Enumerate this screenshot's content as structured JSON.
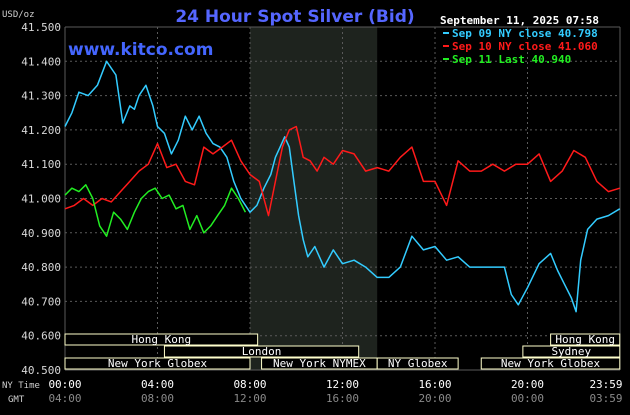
{
  "page_title": "24 Hour Spot Silver (Bid)",
  "units": "USD/oz",
  "brand": "www.kitco.com",
  "timestamp": "September 11, 2025 07:58",
  "axis_label_ny": "NY Time",
  "axis_label_gmt": "GMT",
  "colors": {
    "background": "#000000",
    "grid": "#5a5a5a",
    "series_sep09": "#33ccff",
    "series_sep10": "#ff1a1a",
    "series_sep11": "#22ee22",
    "title": "#5566ff",
    "ny_session_shade": "#1e231e",
    "session_box_fill": "#ffffcc"
  },
  "sessions": [
    {
      "label": "Hong Kong",
      "start": 0,
      "end": 8.33
    },
    {
      "label": "London",
      "start": 4.3,
      "end": 12.7
    },
    {
      "label": "New York Globex",
      "start": 0,
      "end": 8.0
    },
    {
      "label": "New York NYMEX",
      "start": 8.5,
      "end": 13.5
    },
    {
      "label": "NY Globex",
      "start": 13.5,
      "end": 17.0
    },
    {
      "label": "Sydney",
      "start": 19.8,
      "end": 23.99
    },
    {
      "label": "Hong Kong",
      "start": 21.0,
      "end": 23.99
    },
    {
      "label": "New York Globex",
      "start": 18.0,
      "end": 23.99
    }
  ],
  "chart_data": {
    "type": "line",
    "title": "24 Hour Spot Silver (Bid)",
    "ylabel": "USD/oz",
    "xlabel": "NY Time",
    "ylim": [
      40.5,
      41.5
    ],
    "xlim": [
      0,
      24
    ],
    "yticks": [
      "41.500",
      "41.400",
      "41.300",
      "41.200",
      "41.100",
      "41.000",
      "40.900",
      "40.800",
      "40.700",
      "40.600",
      "40.500"
    ],
    "xticks_ny": [
      "00:00",
      "04:00",
      "08:00",
      "12:00",
      "16:00",
      "20:00",
      "23:59"
    ],
    "xticks_gmt": [
      "04:00",
      "08:00",
      "12:00",
      "16:00",
      "20:00",
      "00:00",
      "03:59"
    ],
    "grid": true,
    "legend_position": "top-right",
    "series": [
      {
        "name": "Sep 09 NY close 40.798",
        "color": "#33ccff",
        "x": [
          0,
          0.3,
          0.6,
          1.0,
          1.4,
          1.8,
          2.2,
          2.5,
          2.8,
          3.0,
          3.2,
          3.5,
          3.8,
          4.0,
          4.3,
          4.6,
          4.9,
          5.2,
          5.5,
          5.8,
          6.1,
          6.4,
          6.7,
          7.0,
          7.3,
          7.6,
          8.0,
          8.3,
          8.6,
          8.9,
          9.1,
          9.3,
          9.5,
          9.7,
          9.9,
          10.1,
          10.3,
          10.5,
          10.8,
          11.2,
          11.6,
          12.0,
          12.5,
          13.0,
          13.5,
          14.0,
          14.5,
          15.0,
          15.5,
          16.0,
          16.5,
          17.0,
          17.5,
          18.0,
          18.5,
          19.0,
          19.3,
          19.6,
          20.0,
          20.5,
          21.0,
          21.3,
          21.6,
          21.9,
          22.1,
          22.3,
          22.6,
          23.0,
          23.5,
          23.99
        ],
        "y": [
          41.21,
          41.25,
          41.31,
          41.3,
          41.33,
          41.4,
          41.36,
          41.22,
          41.27,
          41.26,
          41.3,
          41.33,
          41.27,
          41.21,
          41.19,
          41.13,
          41.17,
          41.24,
          41.2,
          41.24,
          41.19,
          41.16,
          41.15,
          41.12,
          41.05,
          41.0,
          40.96,
          40.98,
          41.03,
          41.07,
          41.12,
          41.15,
          41.18,
          41.15,
          41.05,
          40.95,
          40.88,
          40.83,
          40.86,
          40.8,
          40.85,
          40.81,
          40.82,
          40.8,
          40.77,
          40.77,
          40.8,
          40.89,
          40.85,
          40.86,
          40.82,
          40.83,
          40.8,
          40.8,
          40.8,
          40.8,
          40.72,
          40.69,
          40.74,
          40.81,
          40.84,
          40.79,
          40.75,
          40.71,
          40.67,
          40.82,
          40.91,
          40.94,
          40.95,
          40.97
        ]
      },
      {
        "name": "Sep 10 NY close 41.060",
        "color": "#ff1a1a",
        "x": [
          0,
          0.4,
          0.8,
          1.2,
          1.6,
          2.0,
          2.4,
          2.8,
          3.2,
          3.6,
          4.0,
          4.4,
          4.8,
          5.2,
          5.6,
          6.0,
          6.4,
          6.8,
          7.2,
          7.6,
          8.0,
          8.4,
          8.8,
          9.1,
          9.4,
          9.7,
          10.0,
          10.3,
          10.6,
          10.9,
          11.2,
          11.6,
          12.0,
          12.5,
          13.0,
          13.5,
          14.0,
          14.5,
          15.0,
          15.5,
          16.0,
          16.5,
          17.0,
          17.5,
          18.0,
          18.5,
          19.0,
          19.5,
          20.0,
          20.5,
          21.0,
          21.5,
          22.0,
          22.5,
          23.0,
          23.5,
          23.99
        ],
        "y": [
          40.97,
          40.98,
          41.0,
          40.98,
          41.0,
          40.99,
          41.02,
          41.05,
          41.08,
          41.1,
          41.16,
          41.09,
          41.1,
          41.05,
          41.04,
          41.15,
          41.13,
          41.15,
          41.17,
          41.11,
          41.07,
          41.05,
          40.95,
          41.05,
          41.15,
          41.2,
          41.21,
          41.12,
          41.11,
          41.08,
          41.12,
          41.1,
          41.14,
          41.13,
          41.08,
          41.09,
          41.08,
          41.12,
          41.15,
          41.05,
          41.05,
          40.98,
          41.11,
          41.08,
          41.08,
          41.1,
          41.08,
          41.1,
          41.1,
          41.13,
          41.05,
          41.08,
          41.14,
          41.12,
          41.05,
          41.02,
          41.03
        ]
      },
      {
        "name": "Sep 11 Last 40.940",
        "color": "#22ee22",
        "x": [
          0,
          0.3,
          0.6,
          0.9,
          1.2,
          1.5,
          1.8,
          2.1,
          2.4,
          2.7,
          3.0,
          3.3,
          3.6,
          3.9,
          4.2,
          4.5,
          4.8,
          5.1,
          5.4,
          5.7,
          6.0,
          6.3,
          6.6,
          6.9,
          7.2,
          7.5,
          7.8
        ],
        "y": [
          41.01,
          41.03,
          41.02,
          41.04,
          41.0,
          40.92,
          40.89,
          40.96,
          40.94,
          40.91,
          40.96,
          41.0,
          41.02,
          41.03,
          41.0,
          41.01,
          40.97,
          40.98,
          40.91,
          40.95,
          40.9,
          40.92,
          40.95,
          40.98,
          41.03,
          41.0,
          40.96
        ]
      }
    ]
  }
}
